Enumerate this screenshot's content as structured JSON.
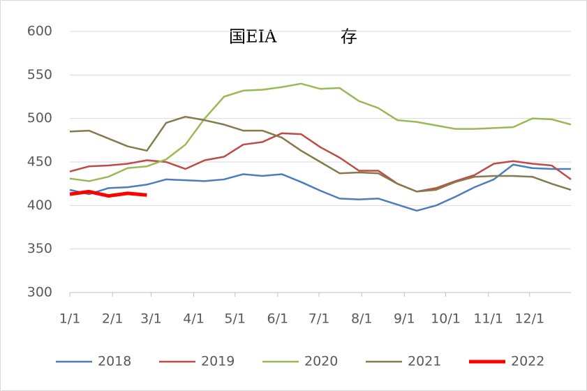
{
  "chart_data": {
    "type": "line",
    "title": "国EIA            存",
    "x": [
      0,
      2,
      4,
      6,
      8,
      10,
      12,
      14,
      16,
      18,
      20,
      22,
      24,
      26,
      28,
      30,
      32,
      34,
      36,
      38,
      40,
      42,
      44,
      46,
      48,
      50,
      52
    ],
    "xlim": [
      0,
      52
    ],
    "xticks": [
      {
        "value": 0,
        "label": "1/1"
      },
      {
        "value": 4.43,
        "label": "2/1"
      },
      {
        "value": 8.43,
        "label": "3/1"
      },
      {
        "value": 12.86,
        "label": "4/1"
      },
      {
        "value": 17.14,
        "label": "5/1"
      },
      {
        "value": 21.57,
        "label": "6/1"
      },
      {
        "value": 25.86,
        "label": "7/1"
      },
      {
        "value": 30.29,
        "label": "8/1"
      },
      {
        "value": 34.71,
        "label": "9/1"
      },
      {
        "value": 39,
        "label": "10/1"
      },
      {
        "value": 43.43,
        "label": "11/1"
      },
      {
        "value": 47.71,
        "label": "12/1"
      }
    ],
    "ylim": [
      300,
      600
    ],
    "yticks": [
      300,
      350,
      400,
      450,
      500,
      550,
      600
    ],
    "grid": true,
    "legend": "bottom",
    "series": [
      {
        "name": "2018",
        "color": "#4a7ebb",
        "width": 2.5,
        "values": [
          418,
          413,
          420,
          421,
          424,
          430,
          429,
          428,
          430,
          436,
          434,
          436,
          427,
          417,
          408,
          407,
          408,
          401,
          394,
          400,
          410,
          421,
          430,
          447,
          443,
          442,
          442
        ]
      },
      {
        "name": "2019",
        "color": "#be4b48",
        "width": 2.5,
        "values": [
          439,
          445,
          446,
          448,
          452,
          450,
          442,
          452,
          456,
          470,
          473,
          483,
          482,
          467,
          455,
          440,
          440,
          425,
          416,
          420,
          428,
          435,
          448,
          451,
          448,
          446,
          430
        ]
      },
      {
        "name": "2020",
        "color": "#98b954",
        "width": 2.5,
        "values": [
          431,
          428,
          433,
          443,
          445,
          453,
          470,
          500,
          525,
          532,
          533,
          536,
          540,
          534,
          535,
          520,
          512,
          498,
          496,
          492,
          488,
          488,
          489,
          490,
          500,
          499,
          493
        ]
      },
      {
        "name": "2021",
        "color": "#847a4a",
        "width": 2.5,
        "values": [
          485,
          486,
          477,
          468,
          463,
          495,
          502,
          498,
          493,
          486,
          486,
          478,
          463,
          450,
          437,
          438,
          437,
          425,
          416,
          418,
          427,
          433,
          434,
          434,
          433,
          425,
          418
        ]
      },
      {
        "name": "2022",
        "color": "#ff0000",
        "width": 5,
        "values": [
          413,
          416,
          411,
          414,
          412,
          null,
          null,
          null,
          null,
          null,
          null,
          null,
          null,
          null,
          null,
          null,
          null,
          null,
          null,
          null,
          null,
          null,
          null,
          null,
          null,
          null,
          null
        ]
      }
    ]
  }
}
